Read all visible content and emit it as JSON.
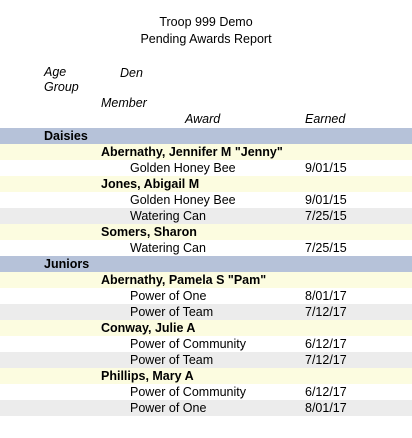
{
  "header": {
    "title": "Troop 999 Demo",
    "subtitle": "Pending Awards Report"
  },
  "columns": {
    "age_group": "Age Group",
    "den": "Den",
    "member": "Member",
    "award": "Award",
    "earned": "Earned"
  },
  "groups": [
    {
      "name": "Daisies",
      "members": [
        {
          "name": "Abernathy, Jennifer M \"Jenny\"",
          "awards": [
            {
              "award": "Golden Honey Bee",
              "earned": "9/01/15"
            }
          ]
        },
        {
          "name": "Jones, Abigail M",
          "awards": [
            {
              "award": "Golden Honey Bee",
              "earned": "9/01/15"
            },
            {
              "award": "Watering Can",
              "earned": "7/25/15"
            }
          ]
        },
        {
          "name": "Somers, Sharon",
          "awards": [
            {
              "award": "Watering Can",
              "earned": "7/25/15"
            }
          ]
        }
      ]
    },
    {
      "name": "Juniors",
      "members": [
        {
          "name": "Abernathy, Pamela S \"Pam\"",
          "awards": [
            {
              "award": "Power of One",
              "earned": "8/01/17"
            },
            {
              "award": "Power of Team",
              "earned": "7/12/17"
            }
          ]
        },
        {
          "name": "Conway, Julie A",
          "awards": [
            {
              "award": "Power of Community",
              "earned": "6/12/17"
            },
            {
              "award": "Power of Team",
              "earned": "7/12/17"
            }
          ]
        },
        {
          "name": "Phillips, Mary A",
          "awards": [
            {
              "award": "Power of Community",
              "earned": "6/12/17"
            },
            {
              "award": "Power of One",
              "earned": "8/01/17"
            }
          ]
        }
      ]
    }
  ]
}
